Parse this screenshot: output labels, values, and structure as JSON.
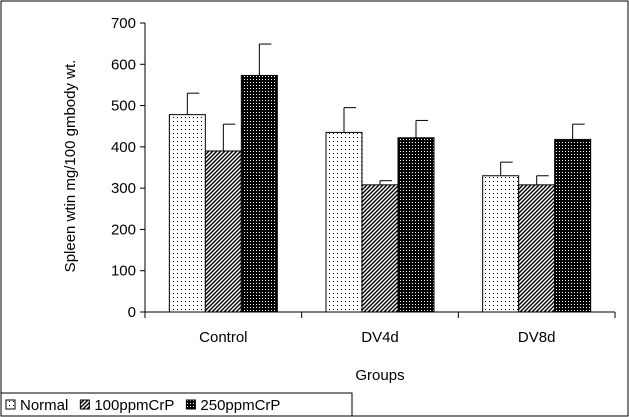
{
  "chart_data": {
    "type": "bar",
    "title": "",
    "xlabel": "Groups",
    "ylabel": "Spleen wtin mg/100 gmbody wt.",
    "categories": [
      "Control",
      "DV4d",
      "DV8d"
    ],
    "ylim": [
      0,
      700
    ],
    "yticks": [
      0,
      100,
      200,
      300,
      400,
      500,
      600,
      700
    ],
    "grid": false,
    "legend_position": "bottom-left",
    "series": [
      {
        "name": "Normal",
        "pattern": "dots",
        "values": [
          478,
          435,
          330
        ],
        "errors": [
          52,
          60,
          33
        ]
      },
      {
        "name": "100ppmCrP",
        "pattern": "diagonal-hatch",
        "values": [
          390,
          308,
          308
        ],
        "errors": [
          65,
          10,
          22
        ]
      },
      {
        "name": "250ppmCrP",
        "pattern": "dense-dots",
        "values": [
          573,
          422,
          418
        ],
        "errors": [
          76,
          42,
          37
        ]
      }
    ],
    "colors": {
      "bar_outline": "#000000",
      "frame": "#000000",
      "background": "#ffffff"
    }
  }
}
